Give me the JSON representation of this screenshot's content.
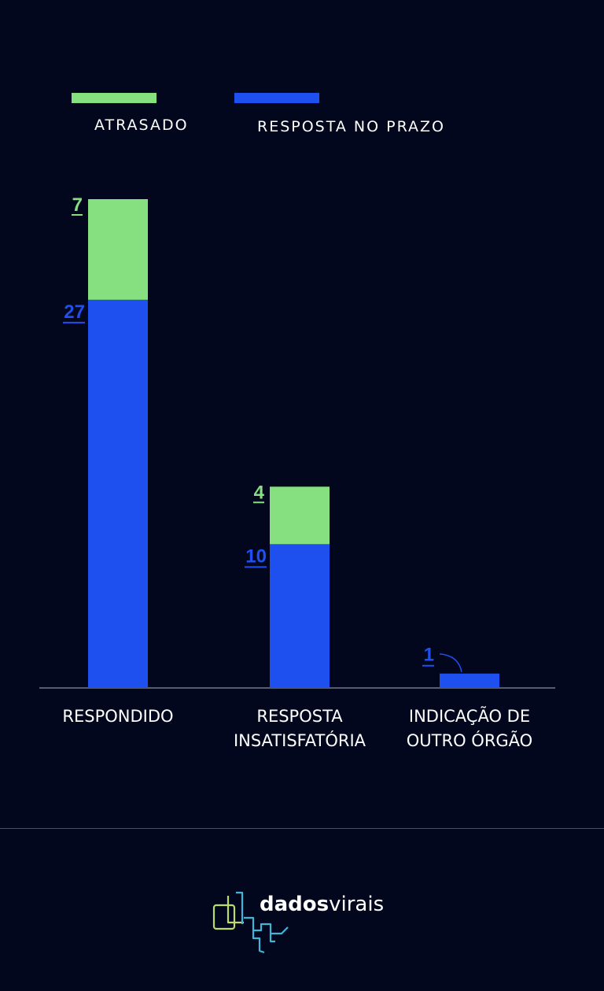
{
  "colors": {
    "background": "#03071e",
    "atrasado": "#87e07f",
    "no_prazo": "#1e50f0",
    "axis": "#8a8ea0",
    "logo_green": "#b9dc6a",
    "logo_cyan": "#3fb6d8"
  },
  "chart_data": {
    "type": "bar",
    "stacked": true,
    "title": "",
    "xlabel": "",
    "ylabel": "",
    "categories": [
      "RESPONDIDO",
      "RESPOSTA INSATISFATÓRIA",
      "INDICAÇÃO DE OUTRO ÓRGÃO"
    ],
    "category_lines": [
      [
        "RESPONDIDO"
      ],
      [
        "RESPOSTA",
        "INSATISFATÓRIA"
      ],
      [
        "INDICAÇÃO DE",
        "OUTRO ÓRGÃO"
      ]
    ],
    "series": [
      {
        "name": "RESPOSTA NO PRAZO",
        "values": [
          27,
          10,
          1
        ],
        "color": "#1e50f0"
      },
      {
        "name": "ATRASADO",
        "values": [
          7,
          4,
          0
        ],
        "color": "#87e07f"
      }
    ],
    "ylim": [
      0,
      34
    ],
    "grid": false,
    "legend": "top-left"
  },
  "legend": {
    "atrasado_label": "ATRASADO",
    "no_prazo_label": "RESPOSTA NO PRAZO"
  },
  "brand": {
    "name_bold": "dados",
    "name_light": "virais",
    "logo_icon": "dadosvirais-logo-icon"
  }
}
